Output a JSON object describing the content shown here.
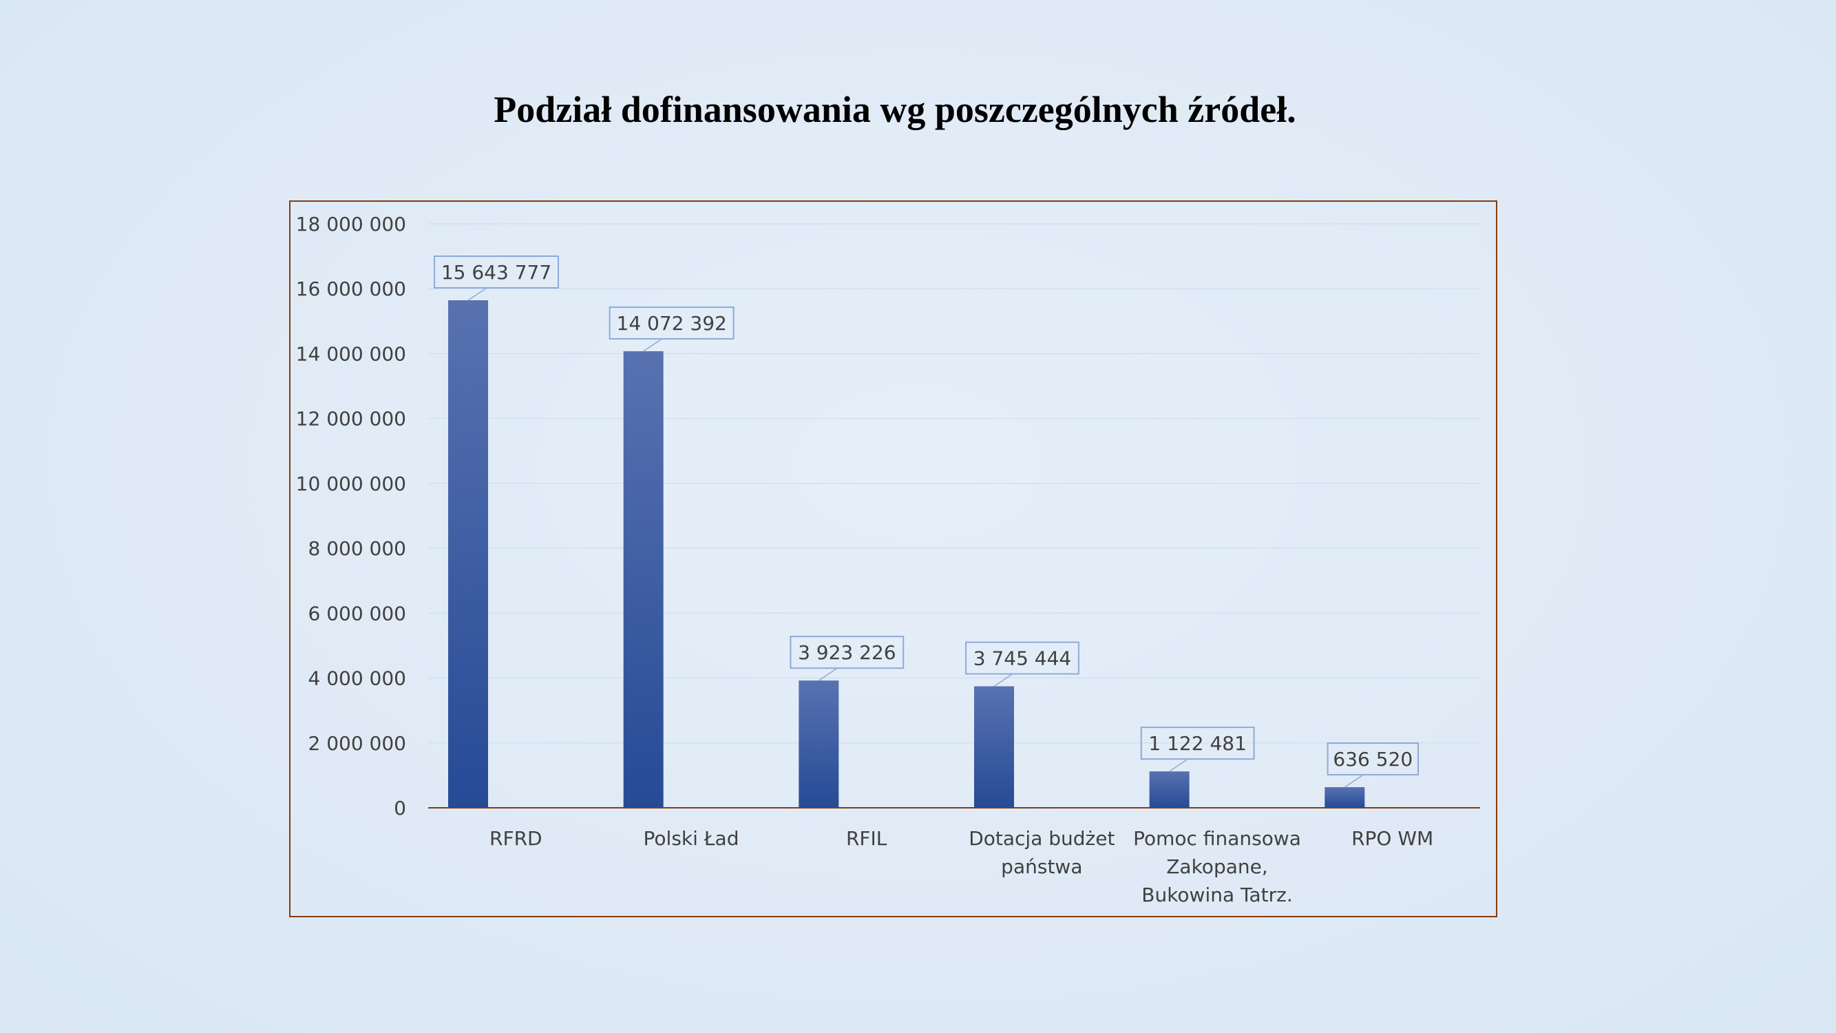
{
  "chart_data": {
    "type": "bar",
    "title": "Podział dofinansowania wg poszczególnych źródeł.",
    "categories": [
      [
        "RFRD"
      ],
      [
        "Polski Ład"
      ],
      [
        "RFIL"
      ],
      [
        "Dotacja budżet",
        "państwa"
      ],
      [
        "Pomoc finansowa",
        "Zakopane,",
        "Bukowina Tatrz."
      ],
      [
        "RPO WM"
      ]
    ],
    "values": [
      15643777,
      14072392,
      3923226,
      3745444,
      1122481,
      636520
    ],
    "value_labels": [
      "15 643 777",
      "14 072 392",
      "3 923 226",
      "3 745 444",
      "1 122 481",
      "636 520"
    ],
    "ylim": [
      0,
      18000000
    ],
    "yticks": [
      0,
      2000000,
      4000000,
      6000000,
      8000000,
      10000000,
      12000000,
      14000000,
      16000000,
      18000000
    ],
    "ytick_labels": [
      "0",
      "2 000 000",
      "4 000 000",
      "6 000 000",
      "8 000 000",
      "10 000 000",
      "12 000 000",
      "14 000 000",
      "16 000 000",
      "18 000 000"
    ],
    "grid": true,
    "legend": "none",
    "colors": {
      "bar_top": "#5872b0",
      "bar_bottom": "#264a96",
      "axis": "#843c0c",
      "gridline": "#d4e0ee",
      "label_border": "#8eaadb",
      "frame": "#843c0c"
    }
  }
}
